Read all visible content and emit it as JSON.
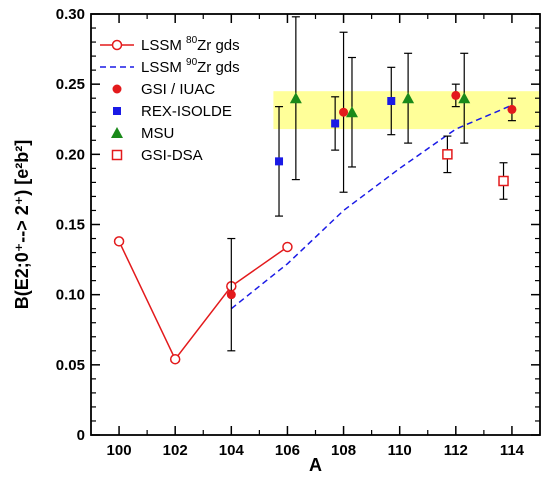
{
  "chart_data": {
    "type": "scatter",
    "xlabel": "A",
    "ylabel": "B(E2;0⁺--> 2⁺) [e²b²]",
    "xlim": [
      99,
      115
    ],
    "ylim": [
      0,
      0.3
    ],
    "x_ticks": [
      "100",
      "102",
      "104",
      "106",
      "108",
      "110",
      "112",
      "114"
    ],
    "y_ticks": [
      "0",
      "0.05",
      "0.10",
      "0.15",
      "0.20",
      "0.25",
      "0.30"
    ],
    "x_tick_values": [
      100,
      102,
      104,
      106,
      108,
      110,
      112,
      114
    ],
    "y_tick_values": [
      0,
      0.05,
      0.1,
      0.15,
      0.2,
      0.25,
      0.3
    ],
    "grid": false,
    "legend_position": "top-left",
    "highlight_band": {
      "y_range": [
        0.218,
        0.245
      ],
      "x_range": [
        105.5,
        115
      ],
      "color": "#ffff99"
    },
    "series": [
      {
        "name": "LSSM",
        "name_sup": "80",
        "name_suffix": "Zr gds",
        "style": "line-open-circle",
        "color": "#e31a1c",
        "points": [
          {
            "x": 100,
            "y": 0.138
          },
          {
            "x": 102,
            "y": 0.054
          },
          {
            "x": 104,
            "y": 0.106
          },
          {
            "x": 106,
            "y": 0.134
          }
        ]
      },
      {
        "name": "LSSM",
        "name_sup": "90",
        "name_suffix": "Zr gds",
        "style": "dashed-line",
        "color": "#1a1ae6",
        "points": [
          {
            "x": 104,
            "y": 0.09
          },
          {
            "x": 106,
            "y": 0.122
          },
          {
            "x": 108,
            "y": 0.16
          },
          {
            "x": 110,
            "y": 0.19
          },
          {
            "x": 112,
            "y": 0.218
          },
          {
            "x": 114,
            "y": 0.235
          }
        ]
      },
      {
        "name": "GSI / IUAC",
        "style": "filled-circle",
        "color": "#e31a1c",
        "points": [
          {
            "x": 104,
            "y": 0.1,
            "err": 0.04
          },
          {
            "x": 108,
            "y": 0.23,
            "err": 0.057
          },
          {
            "x": 112,
            "y": 0.242,
            "err": 0.008
          },
          {
            "x": 114,
            "y": 0.232,
            "err": 0.008
          }
        ]
      },
      {
        "name": "REX-ISOLDE",
        "style": "filled-square",
        "color": "#1a1ae6",
        "points": [
          {
            "x": 105.7,
            "y": 0.195,
            "err": 0.039
          },
          {
            "x": 107.7,
            "y": 0.222,
            "err": 0.019
          },
          {
            "x": 109.7,
            "y": 0.238,
            "err": 0.024
          }
        ]
      },
      {
        "name": "MSU",
        "style": "filled-triangle",
        "color": "#1a8a1a",
        "points": [
          {
            "x": 106.3,
            "y": 0.24,
            "err": 0.058
          },
          {
            "x": 108.3,
            "y": 0.23,
            "err": 0.039
          },
          {
            "x": 110.3,
            "y": 0.24,
            "err": 0.032
          },
          {
            "x": 112.3,
            "y": 0.24,
            "err": 0.032
          }
        ]
      },
      {
        "name": "GSI-DSA",
        "style": "open-square",
        "color": "#e31a1c",
        "points": [
          {
            "x": 111.7,
            "y": 0.2,
            "err": 0.013
          },
          {
            "x": 113.7,
            "y": 0.181,
            "err": 0.013
          }
        ]
      }
    ]
  }
}
